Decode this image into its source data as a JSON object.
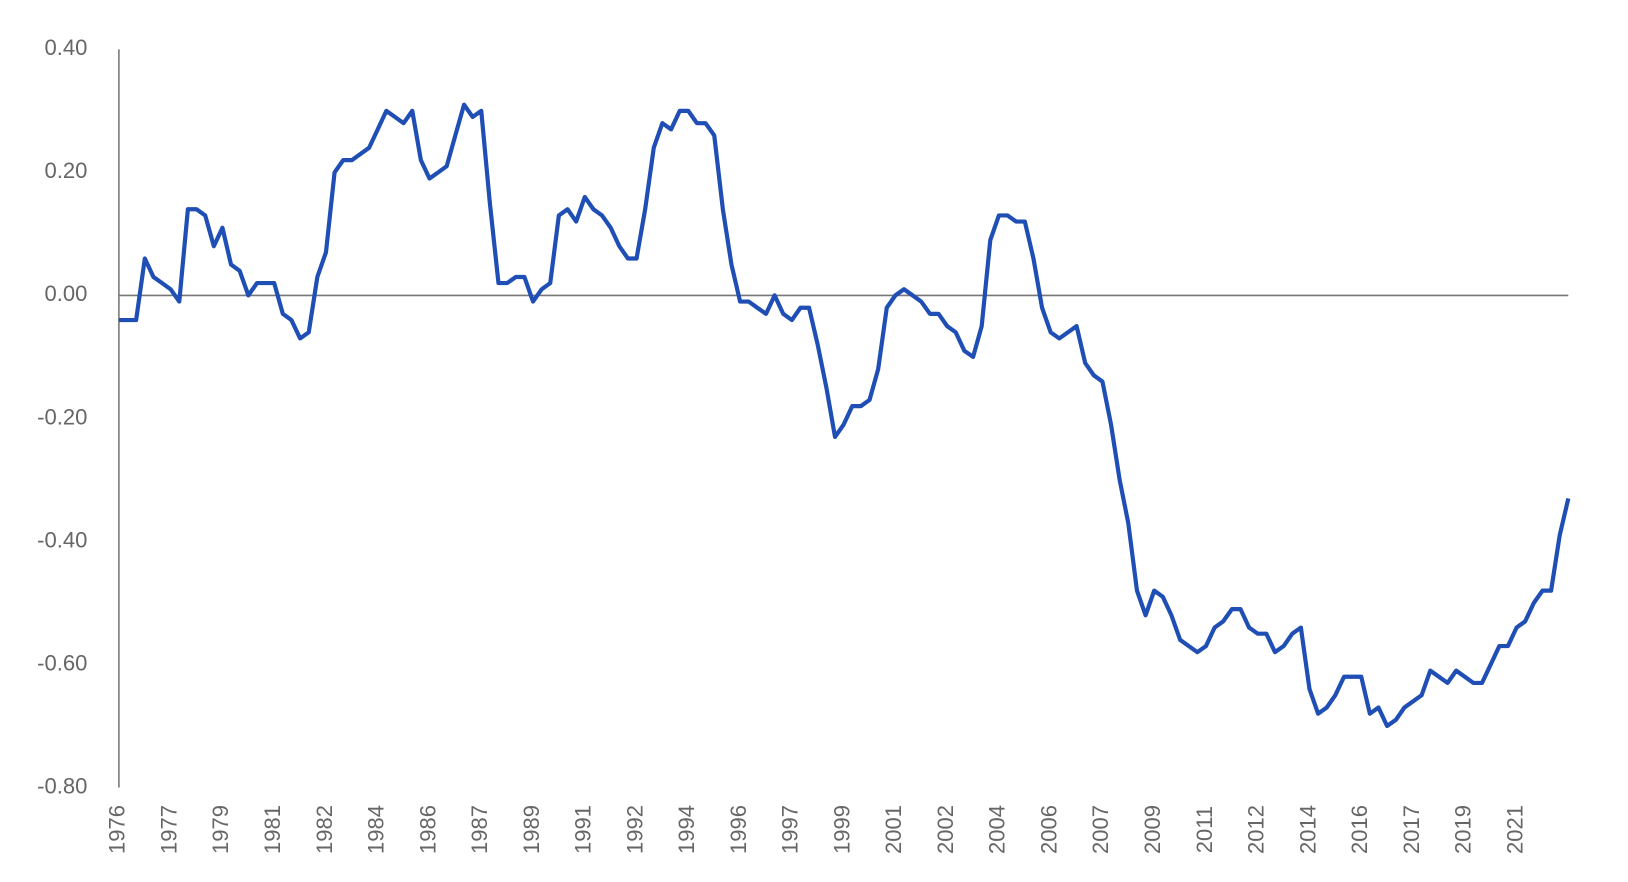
{
  "chart_data": {
    "type": "line",
    "categories": [
      "1976",
      null,
      null,
      null,
      null,
      null,
      "1977",
      null,
      null,
      null,
      null,
      null,
      "1979",
      null,
      null,
      null,
      null,
      null,
      "1981",
      null,
      null,
      null,
      null,
      null,
      "1982",
      null,
      null,
      null,
      null,
      null,
      "1984",
      null,
      null,
      null,
      null,
      null,
      "1986",
      null,
      null,
      null,
      null,
      null,
      "1987",
      null,
      null,
      null,
      null,
      null,
      "1989",
      null,
      null,
      null,
      null,
      null,
      "1991",
      null,
      null,
      null,
      null,
      null,
      "1992",
      null,
      null,
      null,
      null,
      null,
      "1994",
      null,
      null,
      null,
      null,
      null,
      "1996",
      null,
      null,
      null,
      null,
      null,
      "1997",
      null,
      null,
      null,
      null,
      null,
      "1999",
      null,
      null,
      null,
      null,
      null,
      "2001",
      null,
      null,
      null,
      null,
      null,
      "2002",
      null,
      null,
      null,
      null,
      null,
      "2004",
      null,
      null,
      null,
      null,
      null,
      "2006",
      null,
      null,
      null,
      null,
      null,
      "2007",
      null,
      null,
      null,
      null,
      null,
      "2009",
      null,
      null,
      null,
      null,
      null,
      "2011",
      null,
      null,
      null,
      null,
      null,
      "2012",
      null,
      null,
      null,
      null,
      null,
      "2014",
      null,
      null,
      null,
      null,
      null,
      "2016",
      null,
      null,
      null,
      null,
      null,
      "2017",
      null,
      null,
      null,
      null,
      null,
      "2019",
      null,
      null,
      null,
      null,
      null,
      "2021",
      null,
      null,
      null,
      null,
      null,
      null
    ],
    "values": [
      -0.04,
      -0.04,
      -0.04,
      0.06,
      0.03,
      0.02,
      0.01,
      -0.01,
      0.14,
      0.14,
      0.13,
      0.08,
      0.11,
      0.05,
      0.04,
      0.0,
      0.02,
      0.02,
      0.02,
      -0.03,
      -0.04,
      -0.07,
      -0.06,
      0.03,
      0.07,
      0.2,
      0.22,
      0.22,
      0.23,
      0.24,
      0.27,
      0.3,
      0.29,
      0.28,
      0.3,
      0.22,
      0.19,
      0.2,
      0.21,
      0.26,
      0.31,
      0.29,
      0.3,
      0.15,
      0.02,
      0.02,
      0.03,
      0.03,
      -0.01,
      0.01,
      0.02,
      0.13,
      0.14,
      0.12,
      0.16,
      0.14,
      0.13,
      0.11,
      0.08,
      0.06,
      0.06,
      0.14,
      0.24,
      0.28,
      0.27,
      0.3,
      0.3,
      0.28,
      0.28,
      0.26,
      0.14,
      0.05,
      -0.01,
      -0.01,
      -0.02,
      -0.03,
      0.0,
      -0.03,
      -0.04,
      -0.02,
      -0.02,
      -0.08,
      -0.15,
      -0.23,
      -0.21,
      -0.18,
      -0.18,
      -0.17,
      -0.12,
      -0.02,
      0.0,
      0.01,
      0.0,
      -0.01,
      -0.03,
      -0.03,
      -0.05,
      -0.06,
      -0.09,
      -0.1,
      -0.05,
      0.09,
      0.13,
      0.13,
      0.12,
      0.12,
      0.06,
      -0.02,
      -0.06,
      -0.07,
      -0.06,
      -0.05,
      -0.11,
      -0.13,
      -0.14,
      -0.21,
      -0.3,
      -0.37,
      -0.48,
      -0.52,
      -0.48,
      -0.49,
      -0.52,
      -0.56,
      -0.57,
      -0.58,
      -0.57,
      -0.54,
      -0.53,
      -0.51,
      -0.51,
      -0.54,
      -0.55,
      -0.55,
      -0.58,
      -0.57,
      -0.55,
      -0.54,
      -0.64,
      -0.68,
      -0.67,
      -0.65,
      -0.62,
      -0.62,
      -0.62,
      -0.68,
      -0.67,
      -0.7,
      -0.69,
      -0.67,
      -0.66,
      -0.65,
      -0.61,
      -0.62,
      -0.63,
      -0.61,
      -0.62,
      -0.63,
      -0.63,
      -0.6,
      -0.57,
      -0.57,
      -0.54,
      -0.53,
      -0.5,
      -0.48,
      -0.48,
      -0.39,
      -0.33
    ],
    "color": "#1f4fb5",
    "ylim": [
      -0.8,
      0.4
    ],
    "yticks": [
      {
        "value": -0.8,
        "label": "-0.80"
      },
      {
        "value": -0.6,
        "label": "-0.60"
      },
      {
        "value": -0.4,
        "label": "-0.40"
      },
      {
        "value": -0.2,
        "label": "-0.20"
      },
      {
        "value": 0,
        "label": "0.00"
      },
      {
        "value": 0.2,
        "label": "0.20"
      },
      {
        "value": 0.4,
        "label": "0.40"
      }
    ],
    "zero_line": true
  }
}
